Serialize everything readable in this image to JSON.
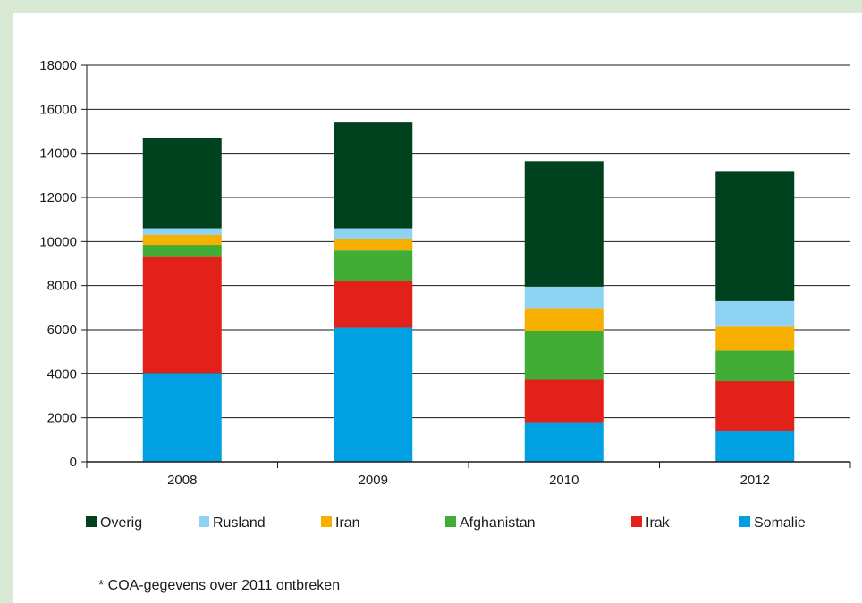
{
  "chart_data": {
    "type": "bar",
    "stacked": true,
    "categories": [
      "2008",
      "2009",
      "2010",
      "2012"
    ],
    "series": [
      {
        "name": "Somalie",
        "color": "#00a0e2",
        "values": [
          4000,
          6100,
          1800,
          1400
        ]
      },
      {
        "name": "Irak",
        "color": "#e1211a",
        "values": [
          5300,
          2100,
          1950,
          2250
        ]
      },
      {
        "name": "Afghanistan",
        "color": "#42ad35",
        "values": [
          550,
          1400,
          2200,
          1400
        ]
      },
      {
        "name": "Iran",
        "color": "#f8b000",
        "values": [
          450,
          500,
          1000,
          1100
        ]
      },
      {
        "name": "Rusland",
        "color": "#8fd3f4",
        "values": [
          300,
          500,
          1000,
          1150
        ]
      },
      {
        "name": "Overig",
        "color": "#00421d",
        "values": [
          4100,
          4800,
          5700,
          5900
        ]
      }
    ],
    "ylim": [
      0,
      18000
    ],
    "yticks": [
      0,
      2000,
      4000,
      6000,
      8000,
      10000,
      12000,
      14000,
      16000,
      18000
    ],
    "grid": true,
    "legend_position": "bottom",
    "legend_order": [
      "Overig",
      "Rusland",
      "Iran",
      "Afghanistan",
      "Irak",
      "Somalie"
    ],
    "xlabel": "",
    "ylabel": "",
    "title": ""
  },
  "footnote": "* COA-gegevens over 2011 ontbreken"
}
